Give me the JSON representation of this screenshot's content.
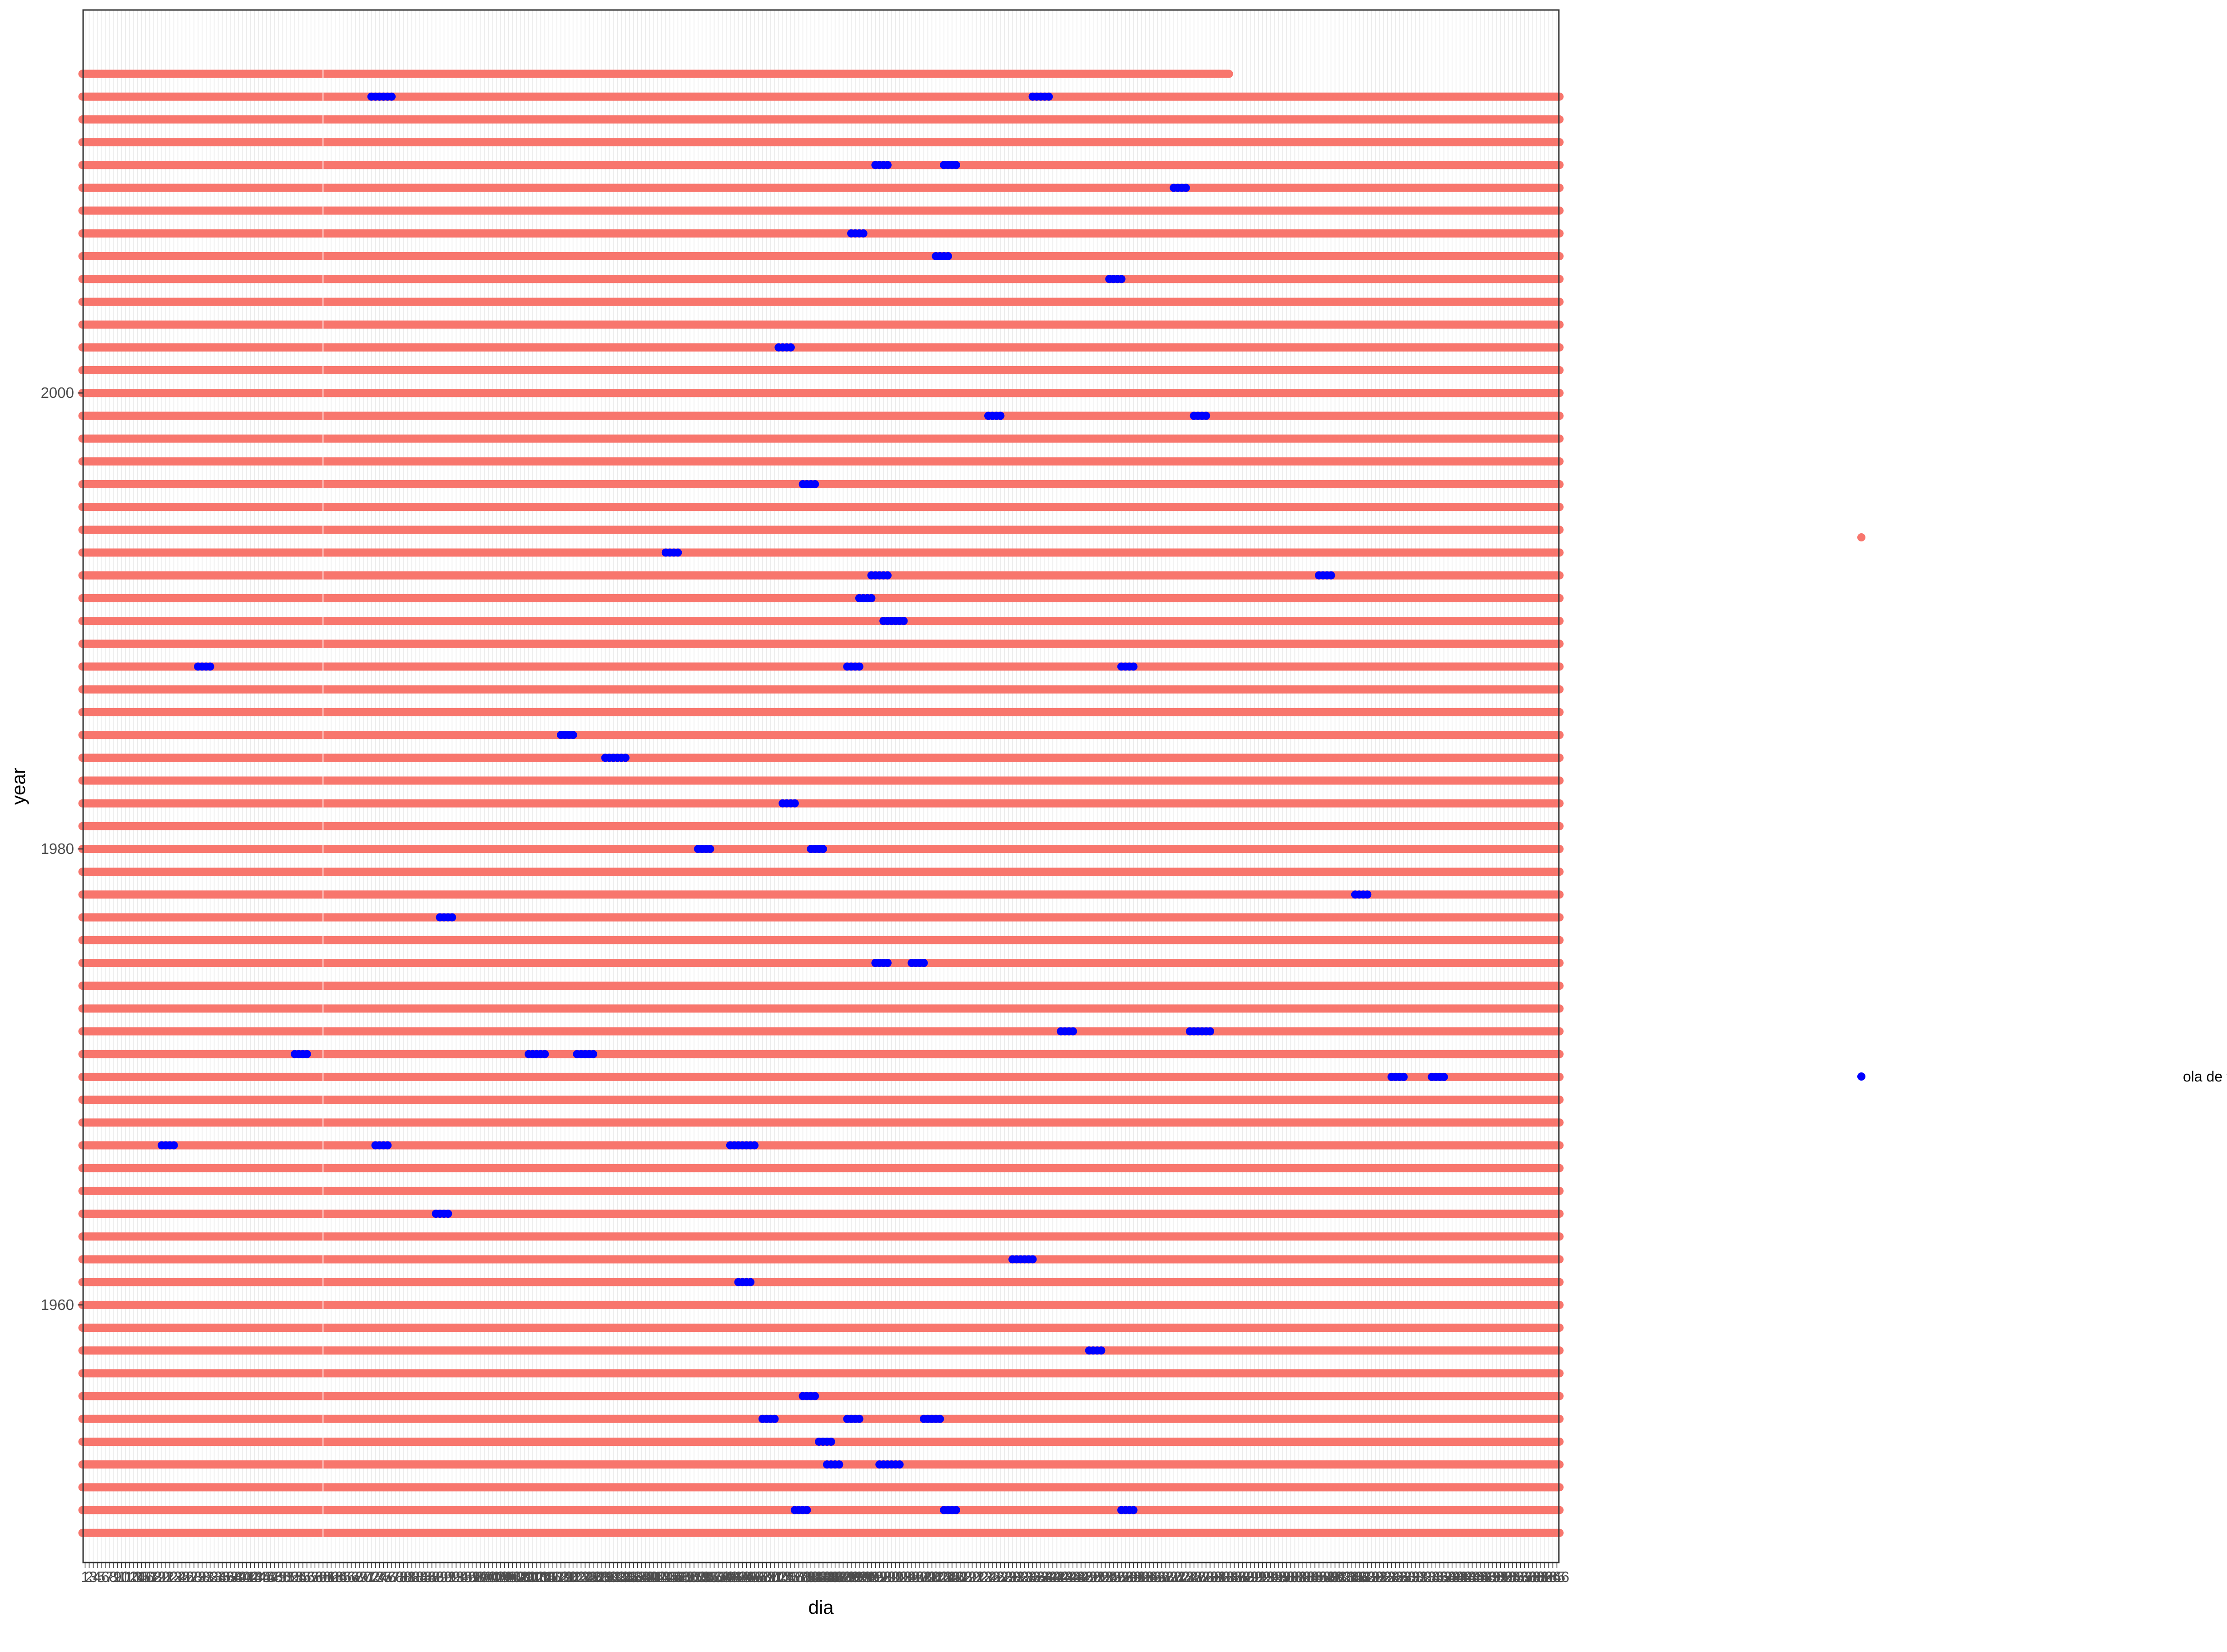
{
  "chart_data": {
    "type": "scatter",
    "xlabel": "dia",
    "ylabel": "year",
    "y_ticks": [
      1960,
      1980,
      2000
    ],
    "ylim": [
      1948.7,
      2016.8
    ],
    "x_tick_labels_note": "",
    "days_per_year": 366,
    "years_full": [
      1950,
      2013
    ],
    "partial_year": {
      "year": 2014,
      "last_day": 284
    },
    "background_gap_day": 60,
    "grid": true,
    "legend": {
      "position": "right",
      "entries": [
        {
          "label": "",
          "color": "#F8766D"
        },
        {
          "label": "ola de frío",
          "color": "#0000FF"
        }
      ]
    },
    "series": [
      {
        "name": "",
        "color": "#F8766D",
        "description": "every day of every year"
      },
      {
        "name": "ola de frío",
        "color": "#0000FF",
        "points": [
          {
            "year": 2013,
            "days": [
              72,
              73,
              74,
              75,
              76,
              77
            ]
          },
          {
            "year": 2013,
            "days": [
              236,
              237,
              238,
              239,
              240
            ]
          },
          {
            "year": 2010,
            "days": [
              197,
              198,
              199,
              200
            ]
          },
          {
            "year": 2010,
            "days": [
              214,
              215,
              216,
              217
            ]
          },
          {
            "year": 2009,
            "days": [
              271,
              272,
              273,
              274
            ]
          },
          {
            "year": 2007,
            "days": [
              191,
              192,
              193,
              194
            ]
          },
          {
            "year": 2006,
            "days": [
              212,
              213,
              214,
              215
            ]
          },
          {
            "year": 2005,
            "days": [
              255,
              256,
              257,
              258
            ]
          },
          {
            "year": 2002,
            "days": [
              173,
              174,
              175,
              176
            ]
          },
          {
            "year": 1999,
            "days": [
              225,
              226,
              227,
              228
            ]
          },
          {
            "year": 1999,
            "days": [
              276,
              277,
              278,
              279
            ]
          },
          {
            "year": 1996,
            "days": [
              179,
              180,
              181,
              182
            ]
          },
          {
            "year": 1993,
            "days": [
              145,
              146,
              147,
              148
            ]
          },
          {
            "year": 1992,
            "days": [
              196,
              197,
              198,
              199,
              200
            ]
          },
          {
            "year": 1992,
            "days": [
              307,
              308,
              309,
              310
            ]
          },
          {
            "year": 1991,
            "days": [
              193,
              194,
              195,
              196
            ]
          },
          {
            "year": 1990,
            "days": [
              199,
              200,
              201,
              202,
              203,
              204
            ]
          },
          {
            "year": 1988,
            "days": [
              29,
              30,
              31,
              32
            ]
          },
          {
            "year": 1988,
            "days": [
              190,
              191,
              192,
              193
            ]
          },
          {
            "year": 1988,
            "days": [
              258,
              259,
              260,
              261
            ]
          },
          {
            "year": 1985,
            "days": [
              119,
              120,
              121,
              122
            ]
          },
          {
            "year": 1984,
            "days": [
              130,
              131,
              132,
              133,
              134,
              135
            ]
          },
          {
            "year": 1982,
            "days": [
              174,
              175,
              176,
              177
            ]
          },
          {
            "year": 1980,
            "days": [
              153,
              154,
              155,
              156
            ]
          },
          {
            "year": 1980,
            "days": [
              181,
              182,
              183,
              184
            ]
          },
          {
            "year": 1978,
            "days": [
              316,
              317,
              318,
              319
            ]
          },
          {
            "year": 1977,
            "days": [
              89,
              90,
              91,
              92
            ]
          },
          {
            "year": 1975,
            "days": [
              197,
              198,
              199,
              200
            ]
          },
          {
            "year": 1975,
            "days": [
              206,
              207,
              208,
              209
            ]
          },
          {
            "year": 1972,
            "days": [
              243,
              244,
              245,
              246
            ]
          },
          {
            "year": 1972,
            "days": [
              275,
              276,
              277,
              278,
              279,
              280
            ]
          },
          {
            "year": 1971,
            "days": [
              53,
              54,
              55,
              56
            ]
          },
          {
            "year": 1971,
            "days": [
              111,
              112,
              113,
              114,
              115
            ]
          },
          {
            "year": 1971,
            "days": [
              123,
              124,
              125,
              126,
              127
            ]
          },
          {
            "year": 1970,
            "days": [
              325,
              326,
              327,
              328
            ]
          },
          {
            "year": 1970,
            "days": [
              335,
              336,
              337,
              338
            ]
          },
          {
            "year": 1967,
            "days": [
              20,
              21,
              22,
              23
            ]
          },
          {
            "year": 1967,
            "days": [
              73,
              74,
              75,
              76
            ]
          },
          {
            "year": 1967,
            "days": [
              161,
              162,
              163,
              164,
              165,
              166,
              167
            ]
          },
          {
            "year": 1964,
            "days": [
              88,
              89,
              90,
              91
            ]
          },
          {
            "year": 1962,
            "days": [
              231,
              232,
              233,
              234,
              235,
              236
            ]
          },
          {
            "year": 1961,
            "days": [
              163,
              164,
              165,
              166
            ]
          },
          {
            "year": 1958,
            "days": [
              250,
              251,
              252,
              253
            ]
          },
          {
            "year": 1956,
            "days": [
              179,
              180,
              181,
              182
            ]
          },
          {
            "year": 1955,
            "days": [
              169,
              170,
              171,
              172
            ]
          },
          {
            "year": 1955,
            "days": [
              190,
              191,
              192,
              193
            ]
          },
          {
            "year": 1955,
            "days": [
              209,
              210,
              211,
              212,
              213
            ]
          },
          {
            "year": 1954,
            "days": [
              183,
              184,
              185,
              186
            ]
          },
          {
            "year": 1953,
            "days": [
              185,
              186,
              187,
              188
            ]
          },
          {
            "year": 1953,
            "days": [
              198,
              199,
              200,
              201,
              202,
              203
            ]
          },
          {
            "year": 1951,
            "days": [
              177,
              178,
              179,
              180
            ]
          },
          {
            "year": 1951,
            "days": [
              214,
              215,
              216,
              217
            ]
          },
          {
            "year": 1951,
            "days": [
              258,
              259,
              260,
              261
            ]
          }
        ]
      }
    ]
  }
}
